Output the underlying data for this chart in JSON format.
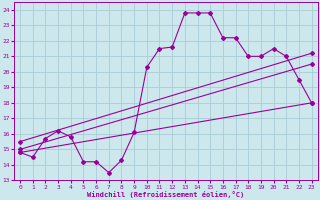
{
  "xlabel": "Windchill (Refroidissement éolien,°C)",
  "background_color": "#cce8ed",
  "grid_color": "#aaccd4",
  "line_color": "#990099",
  "x_ticks": [
    0,
    1,
    2,
    3,
    4,
    5,
    6,
    7,
    8,
    9,
    10,
    11,
    12,
    13,
    14,
    15,
    16,
    17,
    18,
    19,
    20,
    21,
    22,
    23
  ],
  "ylim": [
    13,
    24.5
  ],
  "xlim": [
    -0.5,
    23.5
  ],
  "yticks": [
    13,
    14,
    15,
    16,
    17,
    18,
    19,
    20,
    21,
    22,
    23,
    24
  ],
  "series1_x": [
    0,
    1,
    2,
    3,
    4,
    5,
    6,
    7,
    8,
    9,
    10,
    11,
    12,
    13,
    14,
    15,
    16,
    17,
    18,
    19,
    20,
    21,
    22,
    23
  ],
  "series1_y": [
    14.8,
    14.5,
    15.7,
    16.2,
    15.8,
    14.2,
    14.2,
    13.5,
    14.3,
    16.1,
    20.3,
    21.5,
    21.6,
    23.8,
    23.8,
    23.8,
    22.2,
    22.2,
    21.0,
    21.0,
    21.5,
    21.0,
    19.5,
    18.0
  ],
  "series2_x": [
    0,
    23
  ],
  "series2_y": [
    15.5,
    21.2
  ],
  "series3_x": [
    0,
    23
  ],
  "series3_y": [
    15.0,
    20.5
  ],
  "series4_x": [
    0,
    23
  ],
  "series4_y": [
    14.8,
    18.0
  ]
}
